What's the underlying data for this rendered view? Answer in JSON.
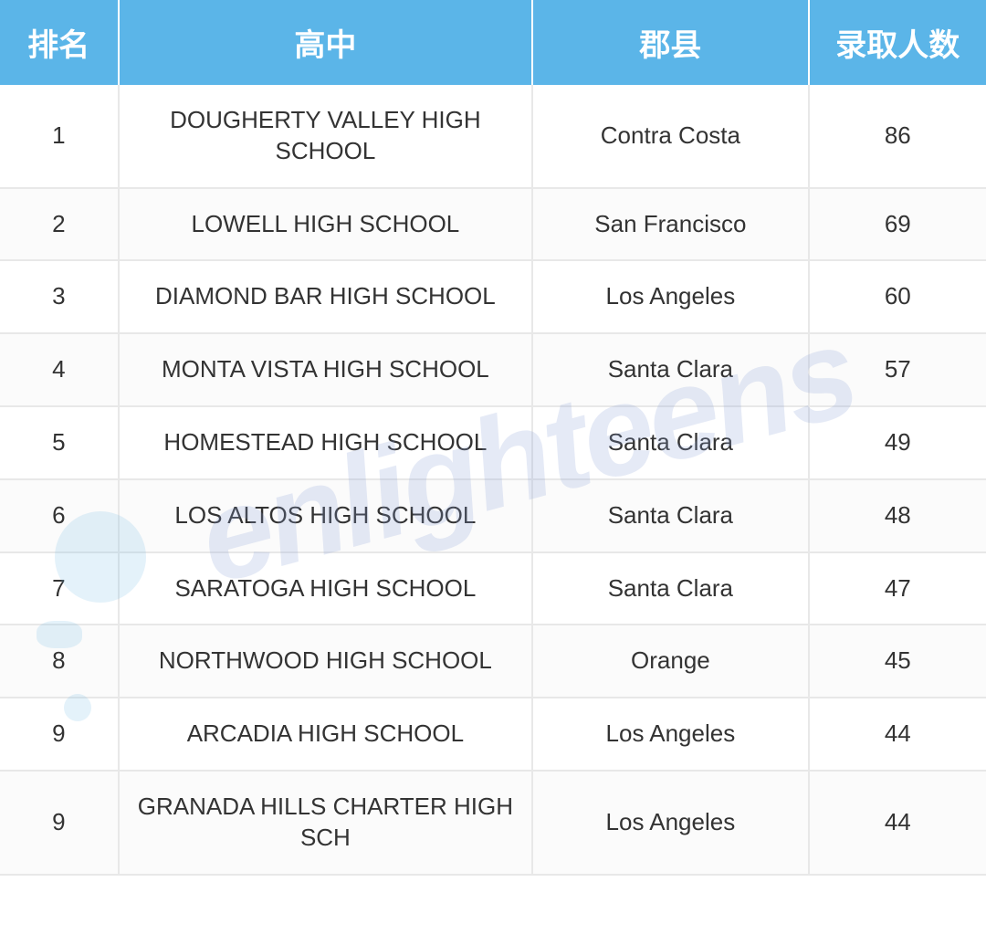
{
  "table": {
    "type": "table",
    "header_bg_color": "#5bb5e8",
    "header_text_color": "#ffffff",
    "header_fontsize": 34,
    "body_fontsize": 26,
    "body_text_color": "#333333",
    "row_alt_bg": "#fbfbfb",
    "border_color": "#e8e8e8",
    "columns": [
      {
        "key": "rank",
        "label": "排名",
        "width_pct": 12,
        "align": "center"
      },
      {
        "key": "school",
        "label": "高中",
        "width_pct": 42,
        "align": "center"
      },
      {
        "key": "county",
        "label": "郡县",
        "width_pct": 28,
        "align": "center"
      },
      {
        "key": "count",
        "label": "录取人数",
        "width_pct": 18,
        "align": "center"
      }
    ],
    "rows": [
      {
        "rank": "1",
        "school": "DOUGHERTY VALLEY HIGH SCHOOL",
        "county": "Contra Costa",
        "count": "86"
      },
      {
        "rank": "2",
        "school": "LOWELL HIGH SCHOOL",
        "county": "San Francisco",
        "count": "69"
      },
      {
        "rank": "3",
        "school": "DIAMOND BAR HIGH SCHOOL",
        "county": "Los Angeles",
        "count": "60"
      },
      {
        "rank": "4",
        "school": "MONTA VISTA HIGH SCHOOL",
        "county": "Santa Clara",
        "count": "57"
      },
      {
        "rank": "5",
        "school": "HOMESTEAD HIGH SCHOOL",
        "county": "Santa Clara",
        "count": "49"
      },
      {
        "rank": "6",
        "school": "LOS ALTOS HIGH SCHOOL",
        "county": "Santa Clara",
        "count": "48"
      },
      {
        "rank": "7",
        "school": "SARATOGA HIGH SCHOOL",
        "county": "Santa Clara",
        "count": "47"
      },
      {
        "rank": "8",
        "school": "NORTHWOOD HIGH SCHOOL",
        "county": "Orange",
        "count": "45"
      },
      {
        "rank": "9",
        "school": "ARCADIA HIGH SCHOOL",
        "county": "Los Angeles",
        "count": "44"
      },
      {
        "rank": "9",
        "school": "GRANADA HILLS CHARTER HIGH SCH",
        "county": "Los Angeles",
        "count": "44"
      }
    ]
  },
  "watermark": {
    "text": "enlighteens",
    "color": "rgba(135, 160, 215, 0.22)",
    "fontsize": 140,
    "rotation_deg": -15
  }
}
